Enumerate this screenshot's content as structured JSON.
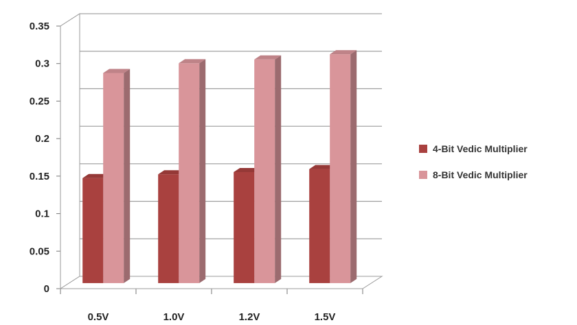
{
  "chart_data": {
    "type": "bar",
    "categories": [
      "0.5V",
      "1.0V",
      "1.2V",
      "1.5V"
    ],
    "series": [
      {
        "name": "4-Bit Vedic Multiplier",
        "values": [
          0.14,
          0.145,
          0.148,
          0.152
        ],
        "color": "#A9413F"
      },
      {
        "name": "8-Bit Vedic Multiplier",
        "values": [
          0.28,
          0.293,
          0.298,
          0.305
        ],
        "color": "#D9959A"
      }
    ],
    "ylim": [
      0,
      0.35
    ],
    "yticks": [
      "0",
      "0.05",
      "0.1",
      "0.15",
      "0.2",
      "0.25",
      "0.3",
      "0.35"
    ],
    "grid": true,
    "legend_position": "right",
    "style": "3d-clustered-column"
  }
}
